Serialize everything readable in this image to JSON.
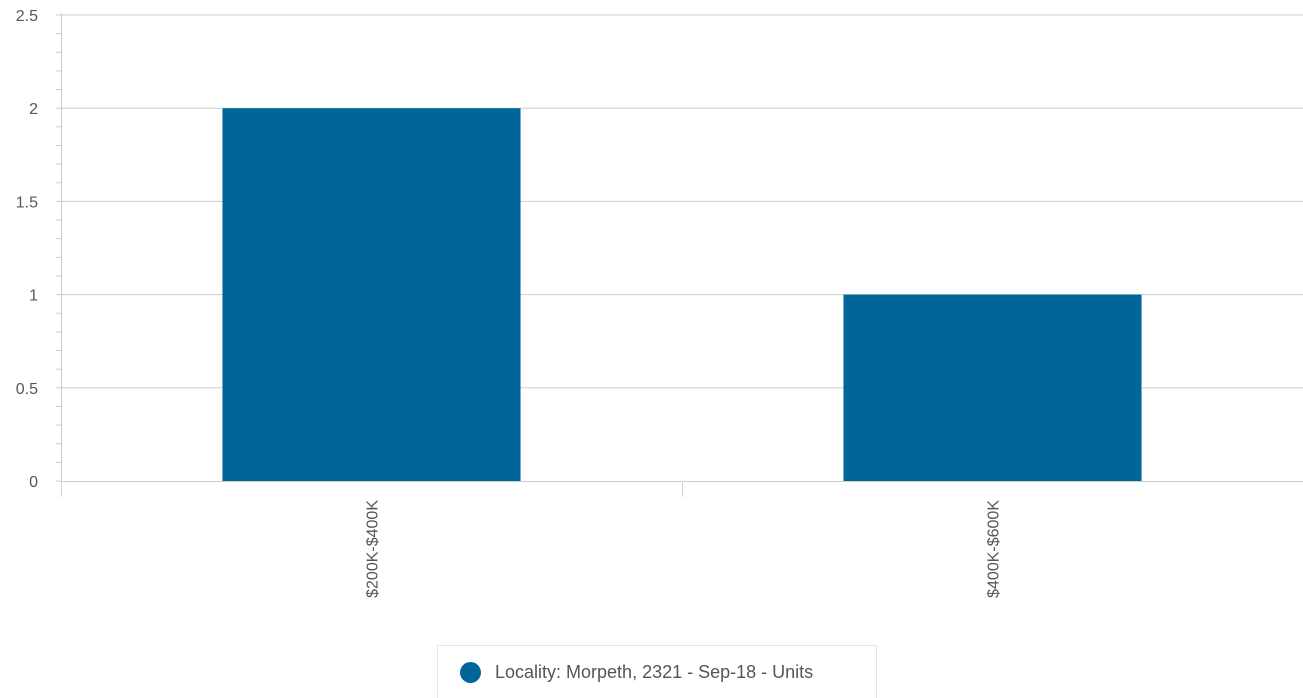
{
  "chart_data": {
    "type": "bar",
    "categories": [
      "$200K-$400K",
      "$400K-$600K"
    ],
    "series": [
      {
        "name": "Locality: Morpeth, 2321 - Sep-18 - Units",
        "values": [
          2,
          1
        ],
        "color": "#006699"
      }
    ],
    "ylim": [
      0,
      2.5
    ],
    "yticks": [
      "0",
      "0.5",
      "1",
      "1.5",
      "2",
      "2.5"
    ],
    "grid": true,
    "legend_position": "bottom-center"
  },
  "legend": {
    "items": [
      {
        "label": "Locality: Morpeth, 2321 - Sep-18 - Units",
        "color": "#006699"
      }
    ]
  }
}
